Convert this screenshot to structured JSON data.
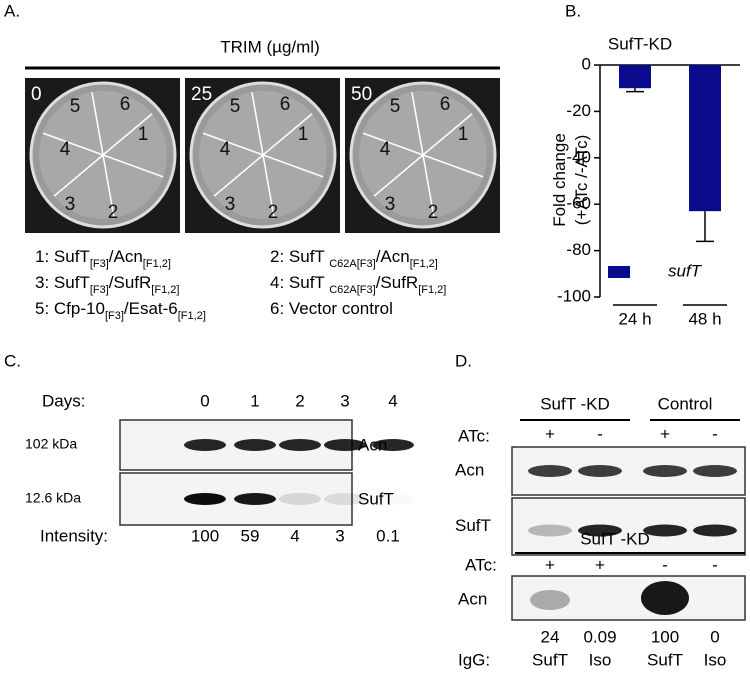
{
  "panel_a": {
    "label": "A.",
    "header": "TRIM (µg/ml)",
    "plates": [
      {
        "dose": "0",
        "sectors": [
          "1",
          "2",
          "3",
          "4",
          "5",
          "6"
        ]
      },
      {
        "dose": "25",
        "sectors": [
          "1",
          "2",
          "3",
          "4",
          "5",
          "6"
        ]
      },
      {
        "dose": "50",
        "sectors": [
          "1",
          "2",
          "3",
          "4",
          "5",
          "6"
        ]
      }
    ],
    "legend": [
      [
        "1: SufT",
        "[F3]",
        "/Acn",
        "[F1,2]"
      ],
      [
        "2: SufT ",
        "C62A[F3]",
        "/Acn",
        "[F1,2]"
      ],
      [
        "3: SufT",
        "[F3]",
        "/SufR",
        "[F1,2]"
      ],
      [
        "4: SufT ",
        "C62A[F3]",
        "/SufR",
        "[F1,2]"
      ],
      [
        "5: Cfp-10",
        "[F3]",
        "/Esat-6",
        "[F1,2]"
      ],
      [
        "6:  Vector control"
      ]
    ]
  },
  "chart_data": {
    "type": "bar",
    "label": "B.",
    "title": "SufT-KD",
    "ylabel": [
      "Fold change",
      "(+ATc /-ATc)"
    ],
    "categories": [
      "24 h",
      "48 h"
    ],
    "series": [
      {
        "name": "sufT",
        "color": "#0a0a8c",
        "values": [
          -10,
          -63
        ],
        "errors": [
          1.5,
          13
        ]
      }
    ],
    "ylim": [
      -100,
      0
    ],
    "yticks": [
      0,
      -20,
      -40,
      -60,
      -80,
      -100
    ],
    "legend": "lower left"
  },
  "panel_c": {
    "label": "C.",
    "days_label": "Days:",
    "days": [
      "0",
      "1",
      "2",
      "3",
      "4"
    ],
    "markers": [
      "102 kDa",
      "12.6 kDa"
    ],
    "rows": [
      "Acn",
      "SufT"
    ],
    "intensity_label": "Intensity:",
    "intensities": [
      100,
      59,
      4,
      3,
      0.1
    ]
  },
  "panel_d": {
    "label": "D.",
    "groups": [
      "SufT -KD",
      "Control"
    ],
    "atc_label": "ATc:",
    "atc": [
      "+",
      "-",
      "+",
      "-"
    ],
    "rows": [
      "Acn",
      "SufT"
    ],
    "ip_title": "SufT -KD",
    "ip_atc": [
      "+",
      "+",
      "-",
      "-"
    ],
    "ip_row": "Acn",
    "ip_values": [
      "24",
      "0.09",
      "100",
      "0"
    ],
    "igg_label": "IgG:",
    "igg": [
      "SufT",
      "Iso",
      "SufT",
      "Iso"
    ]
  }
}
